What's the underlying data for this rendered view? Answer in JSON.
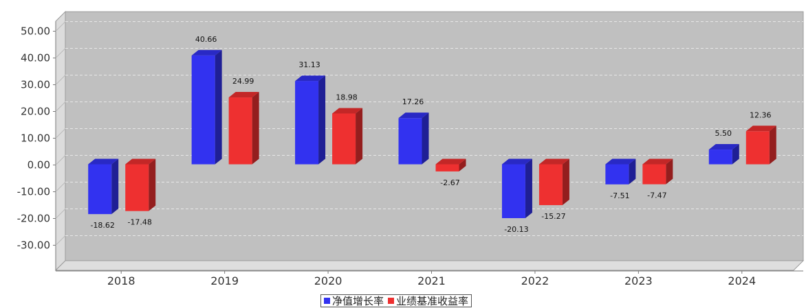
{
  "chart_data": {
    "type": "bar",
    "categories": [
      "2018",
      "2019",
      "2020",
      "2021",
      "2022",
      "2023",
      "2024"
    ],
    "series": [
      {
        "name": "净值增长率",
        "color": "#3232f0",
        "values": [
          -18.62,
          40.66,
          31.13,
          17.26,
          -20.13,
          -7.51,
          5.5
        ]
      },
      {
        "name": "业绩基准收益率",
        "color": "#ee3030",
        "values": [
          -17.48,
          24.99,
          18.98,
          -2.67,
          -15.27,
          -7.47,
          12.36
        ]
      }
    ],
    "yticks": [
      "50.00",
      "40.00",
      "30.00",
      "20.00",
      "10.00",
      "0.00",
      "-10.00",
      "-20.00",
      "-30.00"
    ],
    "ylim": [
      -40,
      55
    ],
    "data_labels": [
      [
        "-18.62",
        "40.66",
        "31.13",
        "17.26",
        "-20.13",
        "-7.51",
        "5.50"
      ],
      [
        "-17.48",
        "24.99",
        "18.98",
        "-2.67",
        "-15.27",
        "-7.47",
        "12.36"
      ]
    ],
    "grid": true,
    "legend_position": "bottom-center",
    "plot_background": "#c0c0c0"
  }
}
